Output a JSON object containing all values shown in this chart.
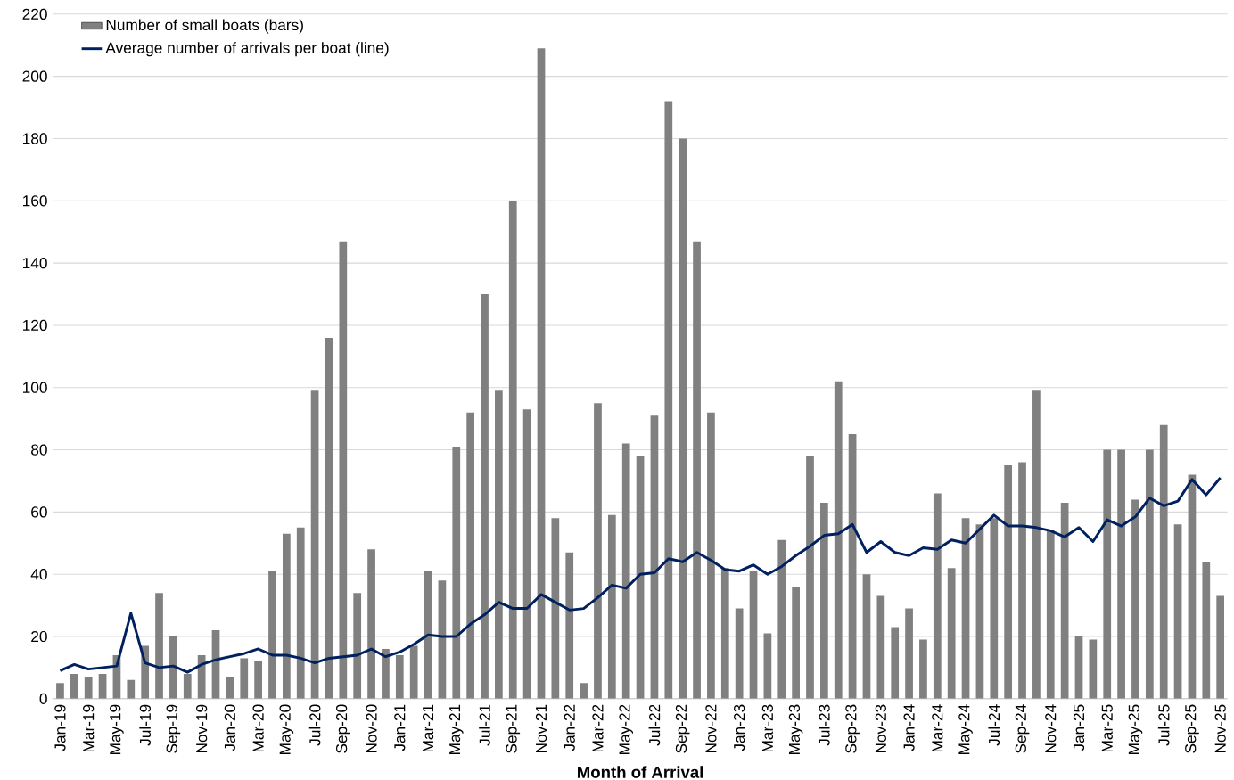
{
  "chart_data": {
    "type": "bar",
    "xlabel": "Month of Arrival",
    "categories": [
      "Jan-19",
      null,
      "Mar-19",
      null,
      "May-19",
      null,
      "Jul-19",
      null,
      "Sep-19",
      null,
      "Nov-19",
      null,
      "Jan-20",
      null,
      "Mar-20",
      null,
      "May-20",
      null,
      "Jul-20",
      null,
      "Sep-20",
      null,
      "Nov-20",
      null,
      "Jan-21",
      null,
      "Mar-21",
      null,
      "May-21",
      null,
      "Jul-21",
      null,
      "Sep-21",
      null,
      "Nov-21",
      null,
      "Jan-22",
      null,
      "Mar-22",
      null,
      "May-22",
      null,
      "Jul-22",
      null,
      "Sep-22",
      null,
      "Nov-22",
      null,
      "Jan-23",
      null,
      "Mar-23",
      null,
      "May-23",
      null,
      "Jul-23",
      null,
      "Sep-23",
      null,
      "Nov-23",
      null,
      "Jan-24",
      null,
      "Mar-24",
      null,
      "May-24",
      null,
      "Jul-24",
      null,
      "Sep-24",
      null,
      "Nov-24",
      null,
      "Jan-25",
      null,
      "Mar-25",
      null,
      "May-25",
      null,
      "Jul-25",
      null,
      "Sep-25",
      null,
      "Nov-25"
    ],
    "series": [
      {
        "name": "Number of small boats (bars)",
        "color": "#808080",
        "values": [
          5,
          8,
          7,
          8,
          14,
          6,
          17,
          34,
          20,
          8,
          14,
          22,
          7,
          13,
          12,
          41,
          53,
          55,
          99,
          116,
          147,
          34,
          48,
          16,
          14,
          17,
          41,
          38,
          81,
          92,
          130,
          99,
          160,
          93,
          209,
          58,
          47,
          5,
          95,
          59,
          82,
          78,
          91,
          192,
          180,
          147,
          92,
          42,
          29,
          41,
          21,
          51,
          36,
          78,
          63,
          102,
          85,
          40,
          33,
          23,
          29,
          19,
          66,
          42,
          58,
          56,
          58,
          75,
          76,
          99,
          54,
          63,
          20,
          19,
          80,
          80,
          64,
          80,
          88,
          56,
          72,
          44,
          33
        ]
      },
      {
        "type": "line",
        "name": "Average number of arrivals per boat (line)",
        "color": "#002060",
        "values": [
          9,
          11,
          9.5,
          10,
          10.5,
          27.5,
          11.5,
          10,
          10.5,
          8.5,
          11,
          12.5,
          13.5,
          14.5,
          16,
          14,
          14,
          13,
          11.5,
          13,
          13.5,
          14,
          16,
          13.5,
          15,
          17.5,
          20.5,
          20,
          20,
          24,
          27,
          31,
          29,
          29,
          33.5,
          31,
          28.5,
          29,
          32.5,
          36.5,
          35.5,
          40,
          40.5,
          45,
          44,
          47,
          44.5,
          41.5,
          41,
          43,
          40,
          42.5,
          46,
          49,
          52.5,
          53,
          56,
          47,
          50.5,
          47,
          46,
          48.5,
          48,
          51,
          50,
          54.5,
          59,
          55.5,
          55.5,
          55,
          54,
          52,
          55,
          50.5,
          57.5,
          55.5,
          58.5,
          64.5,
          62,
          63.5,
          70.5,
          65.5,
          71
        ]
      }
    ],
    "ylim": [
      0,
      220
    ],
    "yticks": [
      0,
      20,
      40,
      60,
      80,
      100,
      120,
      140,
      160,
      180,
      200,
      220
    ],
    "grid": "y",
    "legend": "top left"
  }
}
